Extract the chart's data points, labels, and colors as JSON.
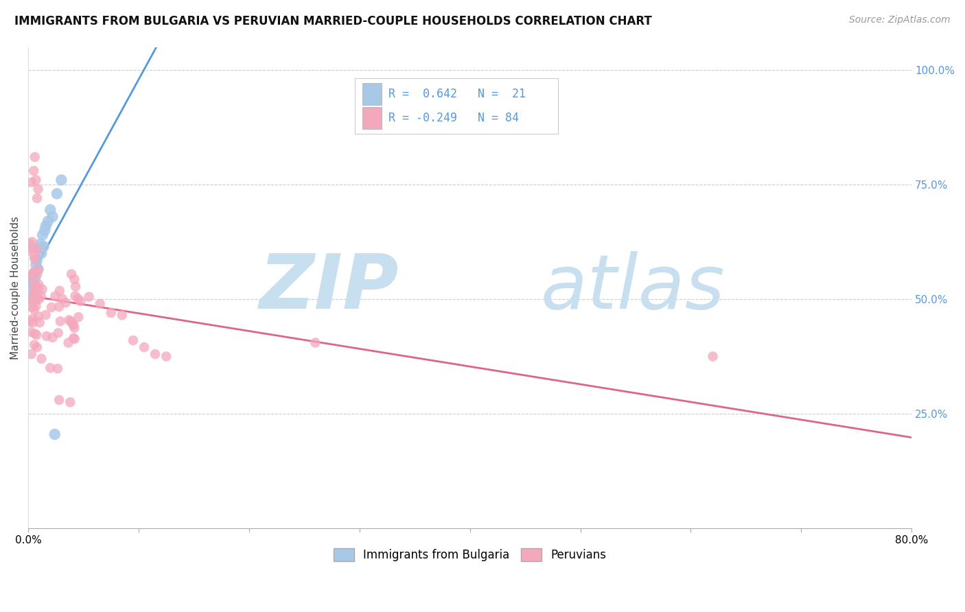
{
  "title": "IMMIGRANTS FROM BULGARIA VS PERUVIAN MARRIED-COUPLE HOUSEHOLDS CORRELATION CHART",
  "source": "Source: ZipAtlas.com",
  "ylabel": "Married-couple Households",
  "legend_r_bulgaria": "R =  0.642",
  "legend_n_bulgaria": "N =  21",
  "legend_r_peruvian": "R = -0.249",
  "legend_n_peruvian": "N = 84",
  "bulgaria_color": "#a8c8e8",
  "peruvian_color": "#f4a8bc",
  "bulgaria_line_color": "#5599dd",
  "peruvian_line_color": "#dd6688",
  "watermark_zip": "ZIP",
  "watermark_atlas": "atlas",
  "watermark_color": "#c8dff0",
  "bg_color": "#ffffff",
  "grid_color": "#cccccc",
  "xlim": [
    0.0,
    0.8
  ],
  "ylim": [
    0.0,
    1.05
  ],
  "ytick_positions": [
    0.25,
    0.5,
    0.75,
    1.0
  ],
  "ytick_labels": [
    "25.0%",
    "50.0%",
    "75.0%",
    "100.0%"
  ],
  "xtick_positions": [
    0.0,
    0.1,
    0.2,
    0.3,
    0.4,
    0.5,
    0.6,
    0.7,
    0.8
  ],
  "xtick_labels": [
    "0.0%",
    "",
    "",
    "",
    "",
    "",
    "",
    "",
    "80.0%"
  ],
  "title_fontsize": 12,
  "source_fontsize": 10,
  "tick_fontsize": 11,
  "legend_fontsize": 12
}
